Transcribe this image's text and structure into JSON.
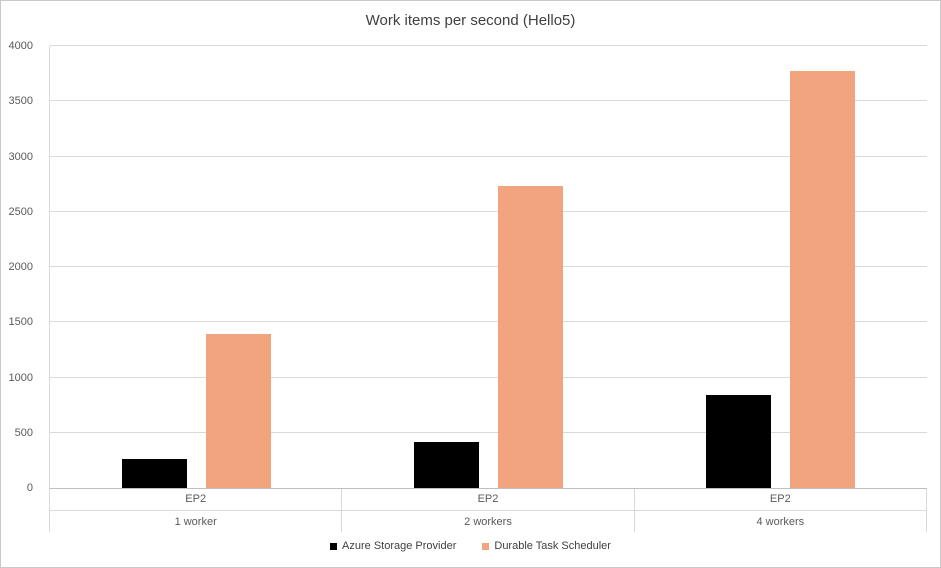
{
  "chart_data": {
    "type": "bar",
    "title": "Work items per second (Hello5)",
    "xlabel": "",
    "ylabel": "",
    "categories": [
      {
        "label": "EP2",
        "sublabel": "1 worker"
      },
      {
        "label": "EP2",
        "sublabel": "2 workers"
      },
      {
        "label": "EP2",
        "sublabel": "4 workers"
      }
    ],
    "series": [
      {
        "name": "Azure Storage Provider",
        "color": "#000000",
        "values": [
          260,
          420,
          840
        ]
      },
      {
        "name": "Durable Task Scheduler",
        "color": "#F2A47E",
        "values": [
          1390,
          2730,
          3770
        ]
      }
    ],
    "ylim": [
      0,
      4000
    ],
    "ytick_interval": 500,
    "grid": true,
    "legend_position": "bottom"
  },
  "style": {
    "grid_color": "#D9D9D9",
    "axis_color": "#BFBFBF",
    "text_color": "#595959",
    "title_color": "#404040",
    "background": "#FFFFFF"
  }
}
